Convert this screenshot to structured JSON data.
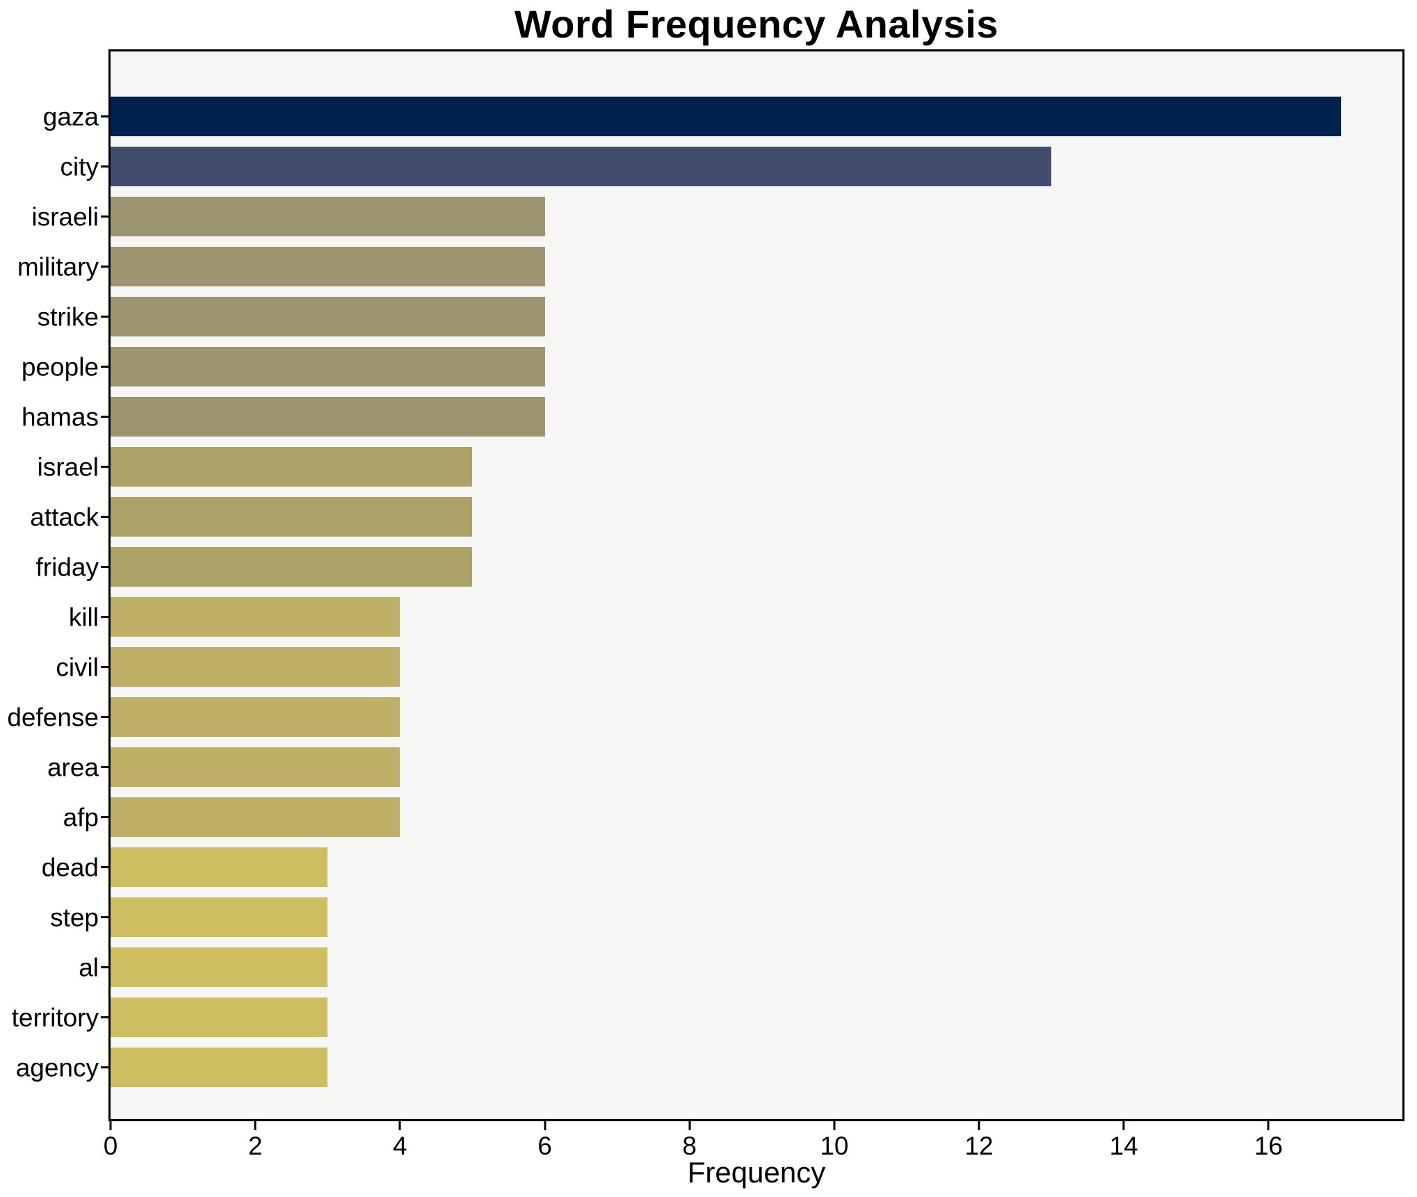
{
  "chart_data": {
    "type": "bar",
    "orientation": "horizontal",
    "title": "Word Frequency Analysis",
    "xlabel": "Frequency",
    "ylabel": "",
    "categories": [
      "gaza",
      "city",
      "israeli",
      "military",
      "strike",
      "people",
      "hamas",
      "israel",
      "attack",
      "friday",
      "kill",
      "civil",
      "defense",
      "area",
      "afp",
      "dead",
      "step",
      "al",
      "territory",
      "agency"
    ],
    "values": [
      17,
      13,
      6,
      6,
      6,
      6,
      6,
      5,
      5,
      5,
      4,
      4,
      4,
      4,
      4,
      3,
      3,
      3,
      3,
      3
    ],
    "bar_colors": [
      "#00224e",
      "#424d6d",
      "#9c9570",
      "#9c9570",
      "#9c9570",
      "#9c9570",
      "#9c9570",
      "#aca166",
      "#aca166",
      "#aca166",
      "#bdaf66",
      "#bdaf66",
      "#bdaf66",
      "#bdaf66",
      "#bdaf66",
      "#cdbf61",
      "#cdbf61",
      "#cdbf61",
      "#cdbf61",
      "#cdbf61"
    ],
    "xlim": [
      0,
      17.85
    ],
    "x_ticks": [
      0,
      2,
      4,
      6,
      8,
      10,
      12,
      14,
      16
    ],
    "grid": false,
    "legend_position": "none",
    "colors": {
      "figure_bg": "#ffffff",
      "plot_bg": "#f6f6f4",
      "spine": "#000000",
      "text": "#000000"
    }
  }
}
